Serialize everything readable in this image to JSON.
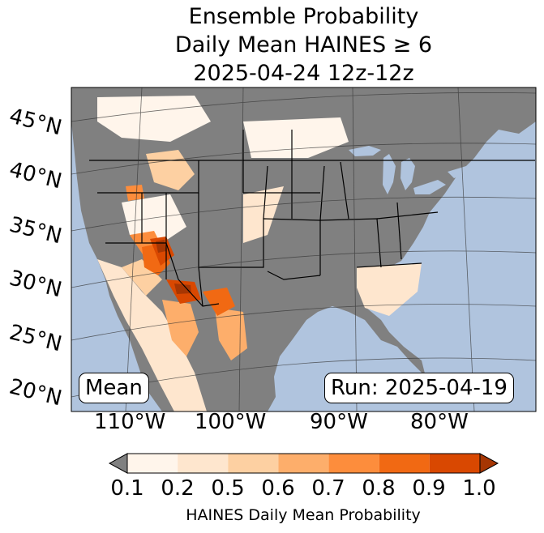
{
  "title": {
    "line1": "Ensemble Probability",
    "line2": "Daily Mean HAINES ≥ 6",
    "line3": "2025-04-24 12z-12z"
  },
  "map": {
    "lat_labels": [
      "45°N",
      "40°N",
      "35°N",
      "30°N",
      "25°N",
      "20°N"
    ],
    "lon_labels": [
      "110°W",
      "100°W",
      "90°W",
      "80°W"
    ],
    "stat_box": "Mean",
    "run_box": "Run: 2025-04-19",
    "colors": {
      "ocean": "#b0c4de",
      "land": "#808080",
      "border": "#000000"
    }
  },
  "colorbar": {
    "ticks": [
      "0.1",
      "0.2",
      "0.5",
      "0.6",
      "0.7",
      "0.8",
      "0.9",
      "1.0"
    ],
    "colors": [
      "#fff5eb",
      "#fee6ce",
      "#fdd0a2",
      "#fdae6b",
      "#fd8d3c",
      "#f16913",
      "#d94801",
      "#a63603"
    ],
    "under_color": "#808080",
    "label": "HAINES Daily Mean Probability"
  }
}
